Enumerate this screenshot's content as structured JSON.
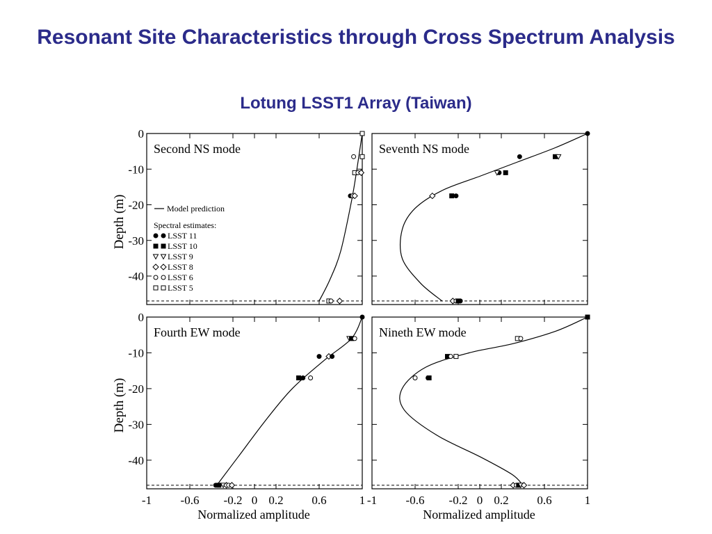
{
  "slide": {
    "title": "Resonant Site Characteristics through Cross Spectrum Analysis",
    "subtitle": "Lotung LSST1 Array (Taiwan)",
    "title_color": "#2b2b8a"
  },
  "legend": {
    "model_label": "Model prediction",
    "spectral_header": "Spectral estimates:",
    "stations": [
      {
        "name": "LSST 11",
        "marker": "circle-filled"
      },
      {
        "name": "LSST 10",
        "marker": "square-filled"
      },
      {
        "name": "LSST 9",
        "marker": "triangle-down"
      },
      {
        "name": "LSST 8",
        "marker": "diamond-open"
      },
      {
        "name": "LSST 6",
        "marker": "circle-open"
      },
      {
        "name": "LSST 5",
        "marker": "square-open"
      }
    ]
  },
  "axes": {
    "ylabel": "Depth (m)",
    "xlabel": "Normalized amplitude",
    "yticks": [
      0,
      -10,
      -20,
      -30,
      -40
    ],
    "ytick_labels": [
      "0",
      "-10",
      "-20",
      "-30",
      "-40"
    ],
    "xticks": [
      -1,
      -0.6,
      -0.2,
      0,
      0.2,
      0.6,
      1
    ],
    "xtick_labels": [
      "-1",
      "-0.6",
      "-0.2",
      "0",
      "0.2",
      "0.6",
      "1"
    ]
  },
  "chart_data": [
    {
      "type": "line",
      "title": "Second NS mode",
      "xlim": [
        -1,
        1
      ],
      "ylim": [
        -48,
        0
      ],
      "dashed_line_depth": -47,
      "model_curve": {
        "x": [
          1.0,
          0.95,
          0.9,
          0.8,
          0.7,
          0.6
        ],
        "y": [
          0,
          -10,
          -19,
          -33,
          -41,
          -47
        ]
      },
      "points": [
        {
          "station": "LSST 11",
          "x": 1.0,
          "y": 0
        },
        {
          "station": "LSST 10",
          "x": 1.0,
          "y": 0
        },
        {
          "station": "LSST 5",
          "x": 1.0,
          "y": 0
        },
        {
          "station": "LSST 6",
          "x": 0.92,
          "y": -6.5
        },
        {
          "station": "LSST 5",
          "x": 1.0,
          "y": -6.5
        },
        {
          "station": "LSST 5",
          "x": 0.93,
          "y": -11
        },
        {
          "station": "LSST 6",
          "x": 0.96,
          "y": -11
        },
        {
          "station": "LSST 8",
          "x": 0.99,
          "y": -11
        },
        {
          "station": "LSST 11",
          "x": 0.89,
          "y": -17.5
        },
        {
          "station": "LSST 6",
          "x": 0.91,
          "y": -17.5
        },
        {
          "station": "LSST 8",
          "x": 0.93,
          "y": -17.5
        },
        {
          "station": "LSST 5",
          "x": 0.69,
          "y": -47
        },
        {
          "station": "LSST 6",
          "x": 0.71,
          "y": -47
        },
        {
          "station": "LSST 8",
          "x": 0.79,
          "y": -47
        }
      ]
    },
    {
      "type": "line",
      "title": "Seventh NS mode",
      "xlim": [
        -1,
        1
      ],
      "ylim": [
        -48,
        0
      ],
      "dashed_line_depth": -47,
      "model_curve": {
        "x": [
          1.0,
          0.7,
          0.35,
          0.0,
          -0.35,
          -0.6,
          -0.72,
          -0.72,
          -0.55,
          -0.35
        ],
        "y": [
          0,
          -4,
          -8,
          -12,
          -16,
          -21,
          -27,
          -35,
          -42,
          -47
        ]
      },
      "points": [
        {
          "station": "LSST 11",
          "x": 1.0,
          "y": 0
        },
        {
          "station": "LSST 11",
          "x": 0.37,
          "y": -6.5
        },
        {
          "station": "LSST 10",
          "x": 0.7,
          "y": -6.5
        },
        {
          "station": "LSST 9",
          "x": 0.73,
          "y": -6.5
        },
        {
          "station": "LSST 11",
          "x": 0.18,
          "y": -11
        },
        {
          "station": "LSST 10",
          "x": 0.24,
          "y": -11
        },
        {
          "station": "LSST 9",
          "x": 0.16,
          "y": -11
        },
        {
          "station": "LSST 8",
          "x": -0.44,
          "y": -17.5
        },
        {
          "station": "LSST 10",
          "x": -0.26,
          "y": -17.5
        },
        {
          "station": "LSST 11",
          "x": -0.22,
          "y": -17.5
        },
        {
          "station": "LSST 8",
          "x": -0.25,
          "y": -47
        },
        {
          "station": "LSST 6",
          "x": -0.22,
          "y": -47
        },
        {
          "station": "LSST 10",
          "x": -0.2,
          "y": -47
        },
        {
          "station": "LSST 11",
          "x": -0.18,
          "y": -47
        }
      ]
    },
    {
      "type": "line",
      "title": "Fourth EW mode",
      "xlim": [
        -1,
        1
      ],
      "ylim": [
        -48,
        0
      ],
      "dashed_line_depth": -47,
      "model_curve": {
        "x": [
          1.0,
          0.9,
          0.65,
          0.35,
          0.1,
          -0.15,
          -0.35
        ],
        "y": [
          0,
          -6,
          -12,
          -20,
          -29,
          -39,
          -47
        ]
      },
      "points": [
        {
          "station": "LSST 11",
          "x": 1.0,
          "y": 0
        },
        {
          "station": "LSST 9",
          "x": 0.88,
          "y": -6
        },
        {
          "station": "LSST 10",
          "x": 0.9,
          "y": -6
        },
        {
          "station": "LSST 6",
          "x": 0.93,
          "y": -6
        },
        {
          "station": "LSST 11",
          "x": 0.6,
          "y": -11
        },
        {
          "station": "LSST 8",
          "x": 0.69,
          "y": -11
        },
        {
          "station": "LSST 11",
          "x": 0.72,
          "y": -11
        },
        {
          "station": "LSST 10",
          "x": 0.41,
          "y": -17
        },
        {
          "station": "LSST 11",
          "x": 0.45,
          "y": -17
        },
        {
          "station": "LSST 6",
          "x": 0.52,
          "y": -17
        },
        {
          "station": "LSST 11",
          "x": -0.36,
          "y": -47
        },
        {
          "station": "LSST 10",
          "x": -0.33,
          "y": -47
        },
        {
          "station": "LSST 9",
          "x": -0.29,
          "y": -47
        },
        {
          "station": "LSST 8",
          "x": -0.26,
          "y": -47
        },
        {
          "station": "LSST 6",
          "x": -0.24,
          "y": -47
        },
        {
          "station": "LSST 8",
          "x": -0.21,
          "y": -47
        }
      ]
    },
    {
      "type": "line",
      "title": "Nineth EW mode",
      "xlim": [
        -1,
        1
      ],
      "ylim": [
        -48,
        0
      ],
      "dashed_line_depth": -47,
      "model_curve": {
        "x": [
          1.0,
          0.7,
          0.3,
          -0.1,
          -0.5,
          -0.72,
          -0.7,
          -0.4,
          0.0,
          0.3,
          0.4
        ],
        "y": [
          0,
          -4,
          -7.5,
          -10,
          -14,
          -20,
          -26,
          -33,
          -39,
          -44,
          -47
        ]
      },
      "points": [
        {
          "station": "LSST 10",
          "x": 1.0,
          "y": 0
        },
        {
          "station": "LSST 5",
          "x": 0.35,
          "y": -6
        },
        {
          "station": "LSST 6",
          "x": 0.38,
          "y": -6
        },
        {
          "station": "LSST 10",
          "x": -0.3,
          "y": -11
        },
        {
          "station": "LSST 6",
          "x": -0.27,
          "y": -11
        },
        {
          "station": "LSST 5",
          "x": -0.22,
          "y": -11
        },
        {
          "station": "LSST 6",
          "x": -0.6,
          "y": -17
        },
        {
          "station": "LSST 11",
          "x": -0.48,
          "y": -17
        },
        {
          "station": "LSST 10",
          "x": -0.47,
          "y": -17
        },
        {
          "station": "LSST 8",
          "x": 0.31,
          "y": -47
        },
        {
          "station": "LSST 6",
          "x": 0.34,
          "y": -47
        },
        {
          "station": "LSST 10",
          "x": 0.36,
          "y": -47
        },
        {
          "station": "LSST 9",
          "x": 0.38,
          "y": -47
        },
        {
          "station": "LSST 8",
          "x": 0.41,
          "y": -47
        }
      ]
    }
  ]
}
